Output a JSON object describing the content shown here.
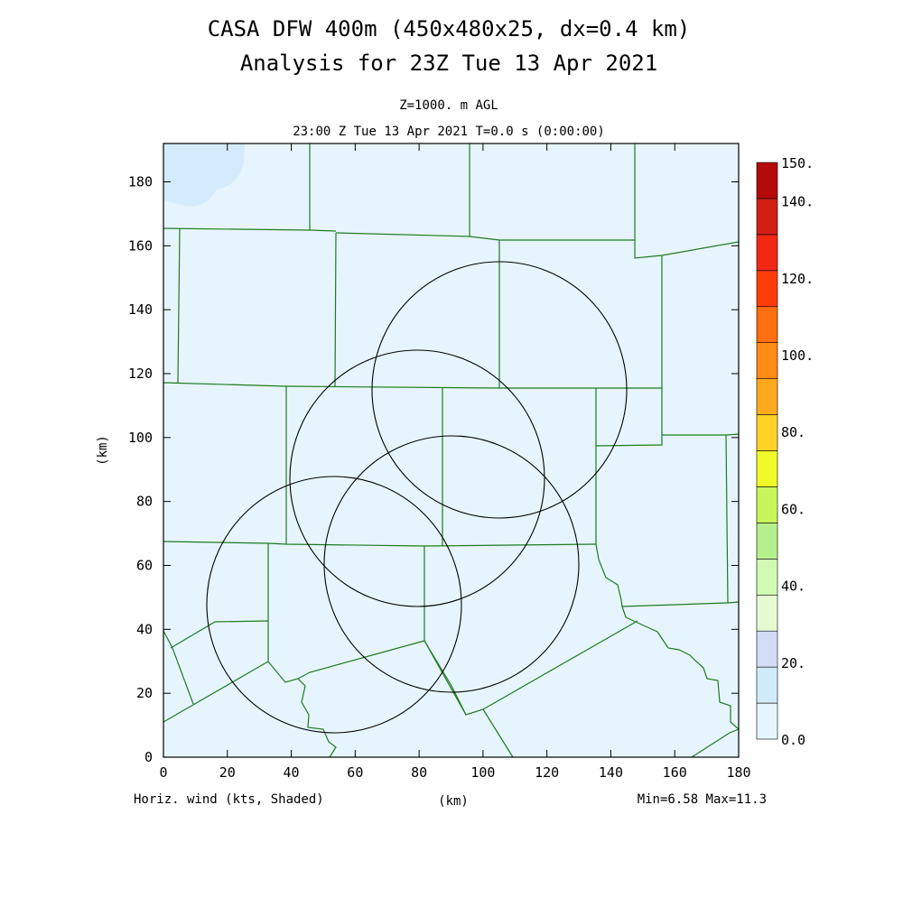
{
  "header": {
    "title_line1": "CASA DFW 400m (450x480x25, dx=0.4 km)",
    "title_line2": "Analysis for 23Z Tue 13 Apr 2021",
    "level": "Z=1000. m AGL",
    "time": "23:00 Z Tue 13 Apr 2021   T=0.0 s (0:00:00)"
  },
  "axes": {
    "x_ticks": [
      "0",
      "20",
      "40",
      "60",
      "80",
      "100",
      "120",
      "140",
      "160",
      "180"
    ],
    "y_ticks": [
      "0",
      "20",
      "40",
      "60",
      "80",
      "100",
      "120",
      "140",
      "160",
      "180"
    ],
    "y_label": "(km)",
    "x_label": "(km)"
  },
  "footer": {
    "field_label": "Horiz. wind (kts, Shaded)",
    "stats": "Min=6.58 Max=11.3"
  },
  "colorbar": {
    "labels": [
      "0.0",
      "20.",
      "40.",
      "60.",
      "80.",
      "100.",
      "120.",
      "140.",
      "150."
    ],
    "colors": [
      "#e6f5fd",
      "#d2ebfa",
      "#d2dcf5",
      "#e6fad2",
      "#d2fab4",
      "#b4f08c",
      "#c8f55a",
      "#f0fa28",
      "#ffd228",
      "#ffaa1e",
      "#ff8c14",
      "#ff6e0f",
      "#ff3c0a",
      "#f02814",
      "#d21e14",
      "#b40a0a"
    ]
  },
  "map": {
    "background_color": "#e6f5fd",
    "patch_color": "#d4ebfb",
    "boundary_color": "#1f7a1f",
    "ring_color": "#000000"
  }
}
